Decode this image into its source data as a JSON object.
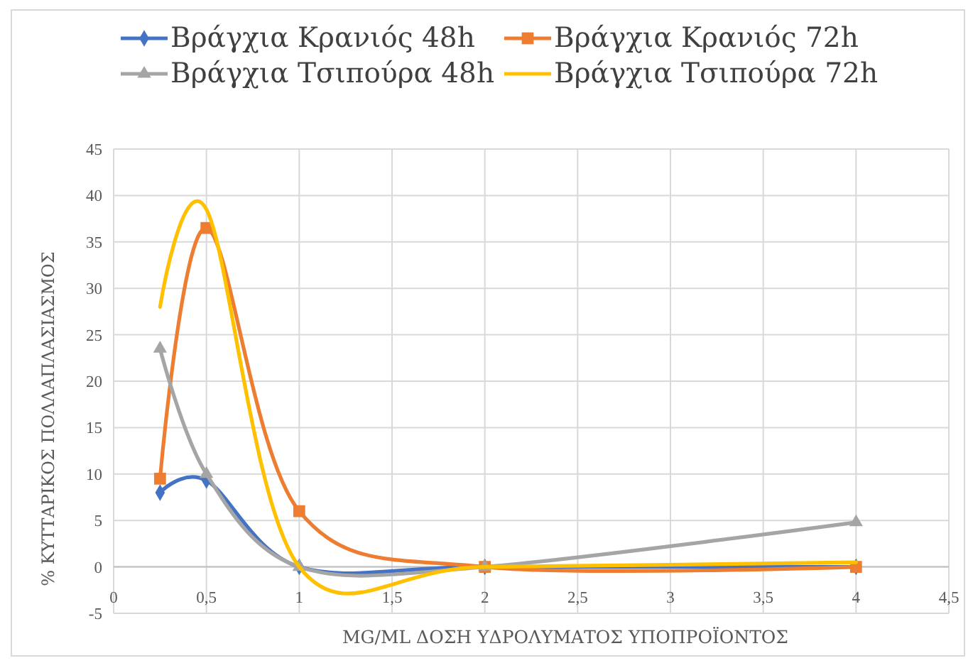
{
  "chart_data": {
    "type": "line",
    "xlabel": "MG/ML ΔΟΣΗ ΥΔΡΟΛΥΜΑΤΟΣ ΥΠΟΠΡΟΪΟΝΤΟΣ",
    "ylabel": "% ΚΥΤΤΑΡΙΚΟΣ ΠΟΛΛΑΠΛΑΣΙΑΣΜΟΣ",
    "x": [
      0.25,
      0.5,
      1,
      2,
      4
    ],
    "series": [
      {
        "name": "Βράγχια Κρανιός 48h",
        "color": "#4472c4",
        "marker": "diamond",
        "values": [
          8,
          9.3,
          0,
          0,
          0
        ]
      },
      {
        "name": "Βράγχια Κρανιός 72h",
        "color": "#ed7d31",
        "marker": "square",
        "values": [
          9.5,
          36.5,
          6,
          0,
          0
        ]
      },
      {
        "name": "Βράγχια Τσιπούρα 48h",
        "color": "#a5a5a5",
        "marker": "triangle",
        "values": [
          23.5,
          10,
          0,
          0,
          4.8
        ]
      },
      {
        "name": "Βράγχια Τσιπούρα 72h",
        "color": "#ffc000",
        "marker": "none",
        "values": [
          28,
          38.5,
          0,
          0,
          0.5
        ]
      }
    ],
    "xlim": [
      0,
      4.5
    ],
    "xticks": [
      0,
      {
        "value": 0.5,
        "label": "0,5"
      },
      1,
      {
        "value": 1.5,
        "label": "1,5"
      },
      2,
      {
        "value": 2.5,
        "label": "2,5"
      },
      3,
      {
        "value": 3.5,
        "label": "3,5"
      },
      4,
      {
        "value": 4.5,
        "label": "4,5"
      }
    ],
    "ylim": [
      -5,
      45
    ],
    "yticks": [
      -5,
      0,
      5,
      10,
      15,
      20,
      25,
      30,
      35,
      40,
      45
    ],
    "grid": true,
    "legend": "top"
  }
}
